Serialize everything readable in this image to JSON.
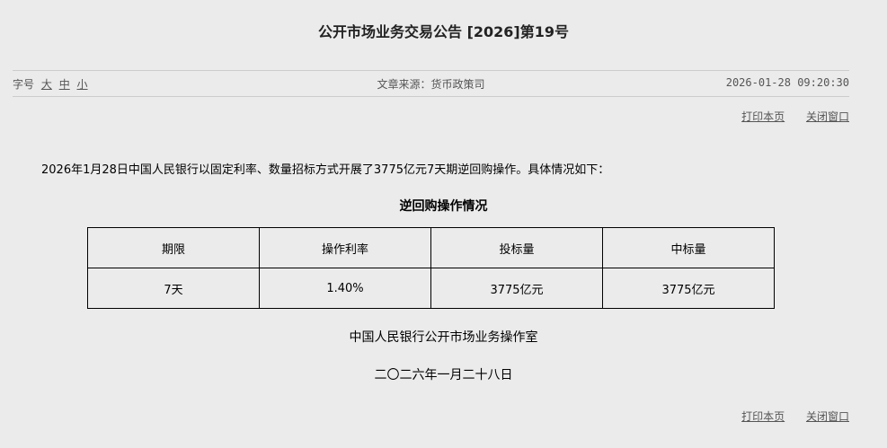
{
  "title": "公开市场业务交易公告 [2026]第19号",
  "meta": {
    "font_size_label": "字号",
    "sizes": [
      "大",
      "中",
      "小"
    ],
    "source": "文章来源：货币政策司",
    "datetime": "2026-01-28 09:20:30"
  },
  "links": {
    "print": "打印本页",
    "close": "关闭窗口"
  },
  "intro": "2026年1月28日中国人民银行以固定利率、数量招标方式开展了3775亿元7天期逆回购操作。具体情况如下：",
  "table": {
    "title": "逆回购操作情况",
    "headers": [
      "期限",
      "操作利率",
      "投标量",
      "中标量"
    ],
    "rows": [
      [
        "7天",
        "1.40%",
        "3775亿元",
        "3775亿元"
      ]
    ]
  },
  "signature": {
    "org": "中国人民银行公开市场业务操作室",
    "date": "二〇二六年一月二十八日"
  }
}
